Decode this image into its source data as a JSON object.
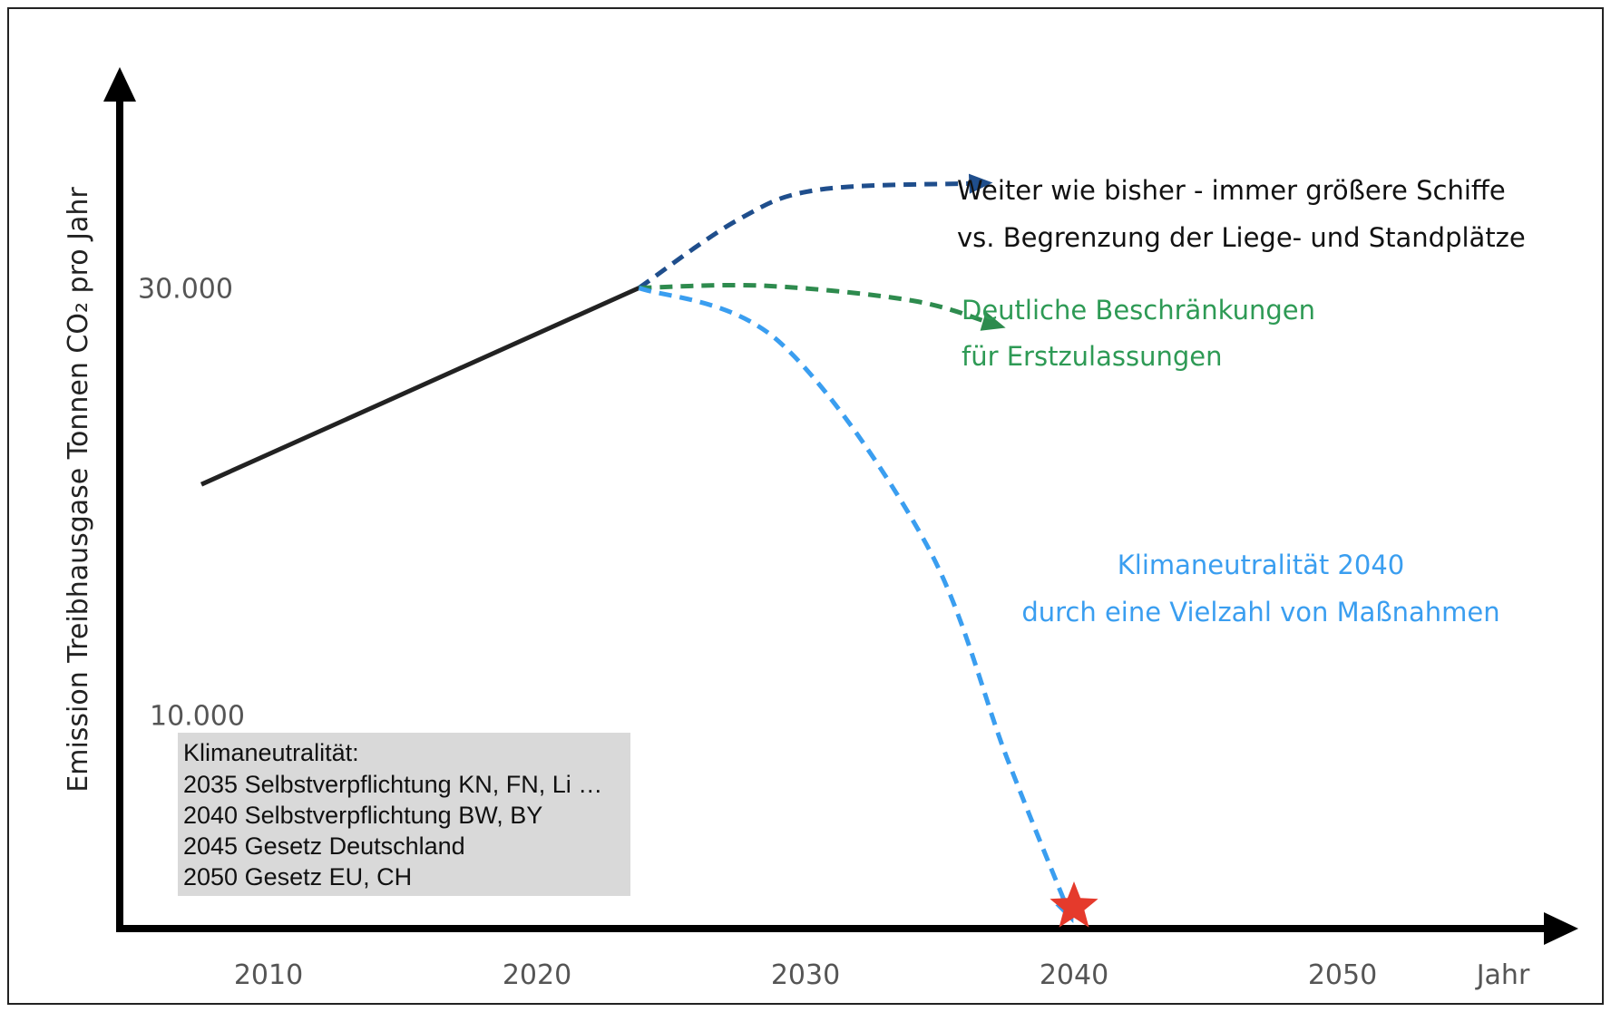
{
  "chart_data": {
    "type": "line",
    "ylabel": "Emission Treibhausgase Tonnen CO₂ pro Jahr",
    "xlabel": "Jahr",
    "x_ticks": [
      2010,
      2020,
      2030,
      2040,
      2050
    ],
    "y_ticks": [
      {
        "value": 30000,
        "label": "30.000"
      },
      {
        "value": 10000,
        "label": "10.000"
      }
    ],
    "series": [
      {
        "points": [
          [
            2007.5,
            20800
          ],
          [
            2023.8,
            30000
          ]
        ],
        "color": "#222222",
        "style": "solid"
      },
      {
        "points": [
          [
            2023.8,
            30000
          ],
          [
            2027.5,
            33200
          ],
          [
            2030.5,
            34600
          ],
          [
            2036.5,
            34900
          ]
        ],
        "color": "#1f4e8c",
        "style": "dashed"
      },
      {
        "points": [
          [
            2023.8,
            30000
          ],
          [
            2028.5,
            30100
          ],
          [
            2034.0,
            29400
          ],
          [
            2037.0,
            28300
          ]
        ],
        "color": "#2e8b4e",
        "style": "dashed"
      },
      {
        "points": [
          [
            2023.8,
            30000
          ],
          [
            2029.0,
            27500
          ],
          [
            2034.5,
            18000
          ],
          [
            2037.5,
            8000
          ],
          [
            2039.8,
            800
          ]
        ],
        "color": "#3a9ef0",
        "style": "dashed"
      }
    ],
    "marker": {
      "x": 2040,
      "y": 0,
      "shape": "star",
      "color": "#e53a2c"
    },
    "annotations": [
      {
        "lines": [
          "Weiter wie bisher - immer größere Schiffe",
          "vs. Begrenzung der Liege- und Standplätze"
        ],
        "color": "#111111"
      },
      {
        "lines": [
          "Deutliche Beschränkungen",
          "für Erstzulassungen"
        ],
        "color": "#2e9a55"
      },
      {
        "lines": [
          "Klimaneutralität 2040",
          "durch eine Vielzahl von Maßnahmen"
        ],
        "color": "#3a9ef0"
      }
    ],
    "legend_box": {
      "lines": [
        "Klimaneutralität:",
        "2035 Selbstverpflichtung KN, FN, Li …",
        "2040 Selbstverpflichtung BW, BY",
        "2045 Gesetz Deutschland",
        "2050 Gesetz EU, CH"
      ],
      "background": "#d9d9d9",
      "placement": "bottom-left"
    },
    "grid": false
  }
}
